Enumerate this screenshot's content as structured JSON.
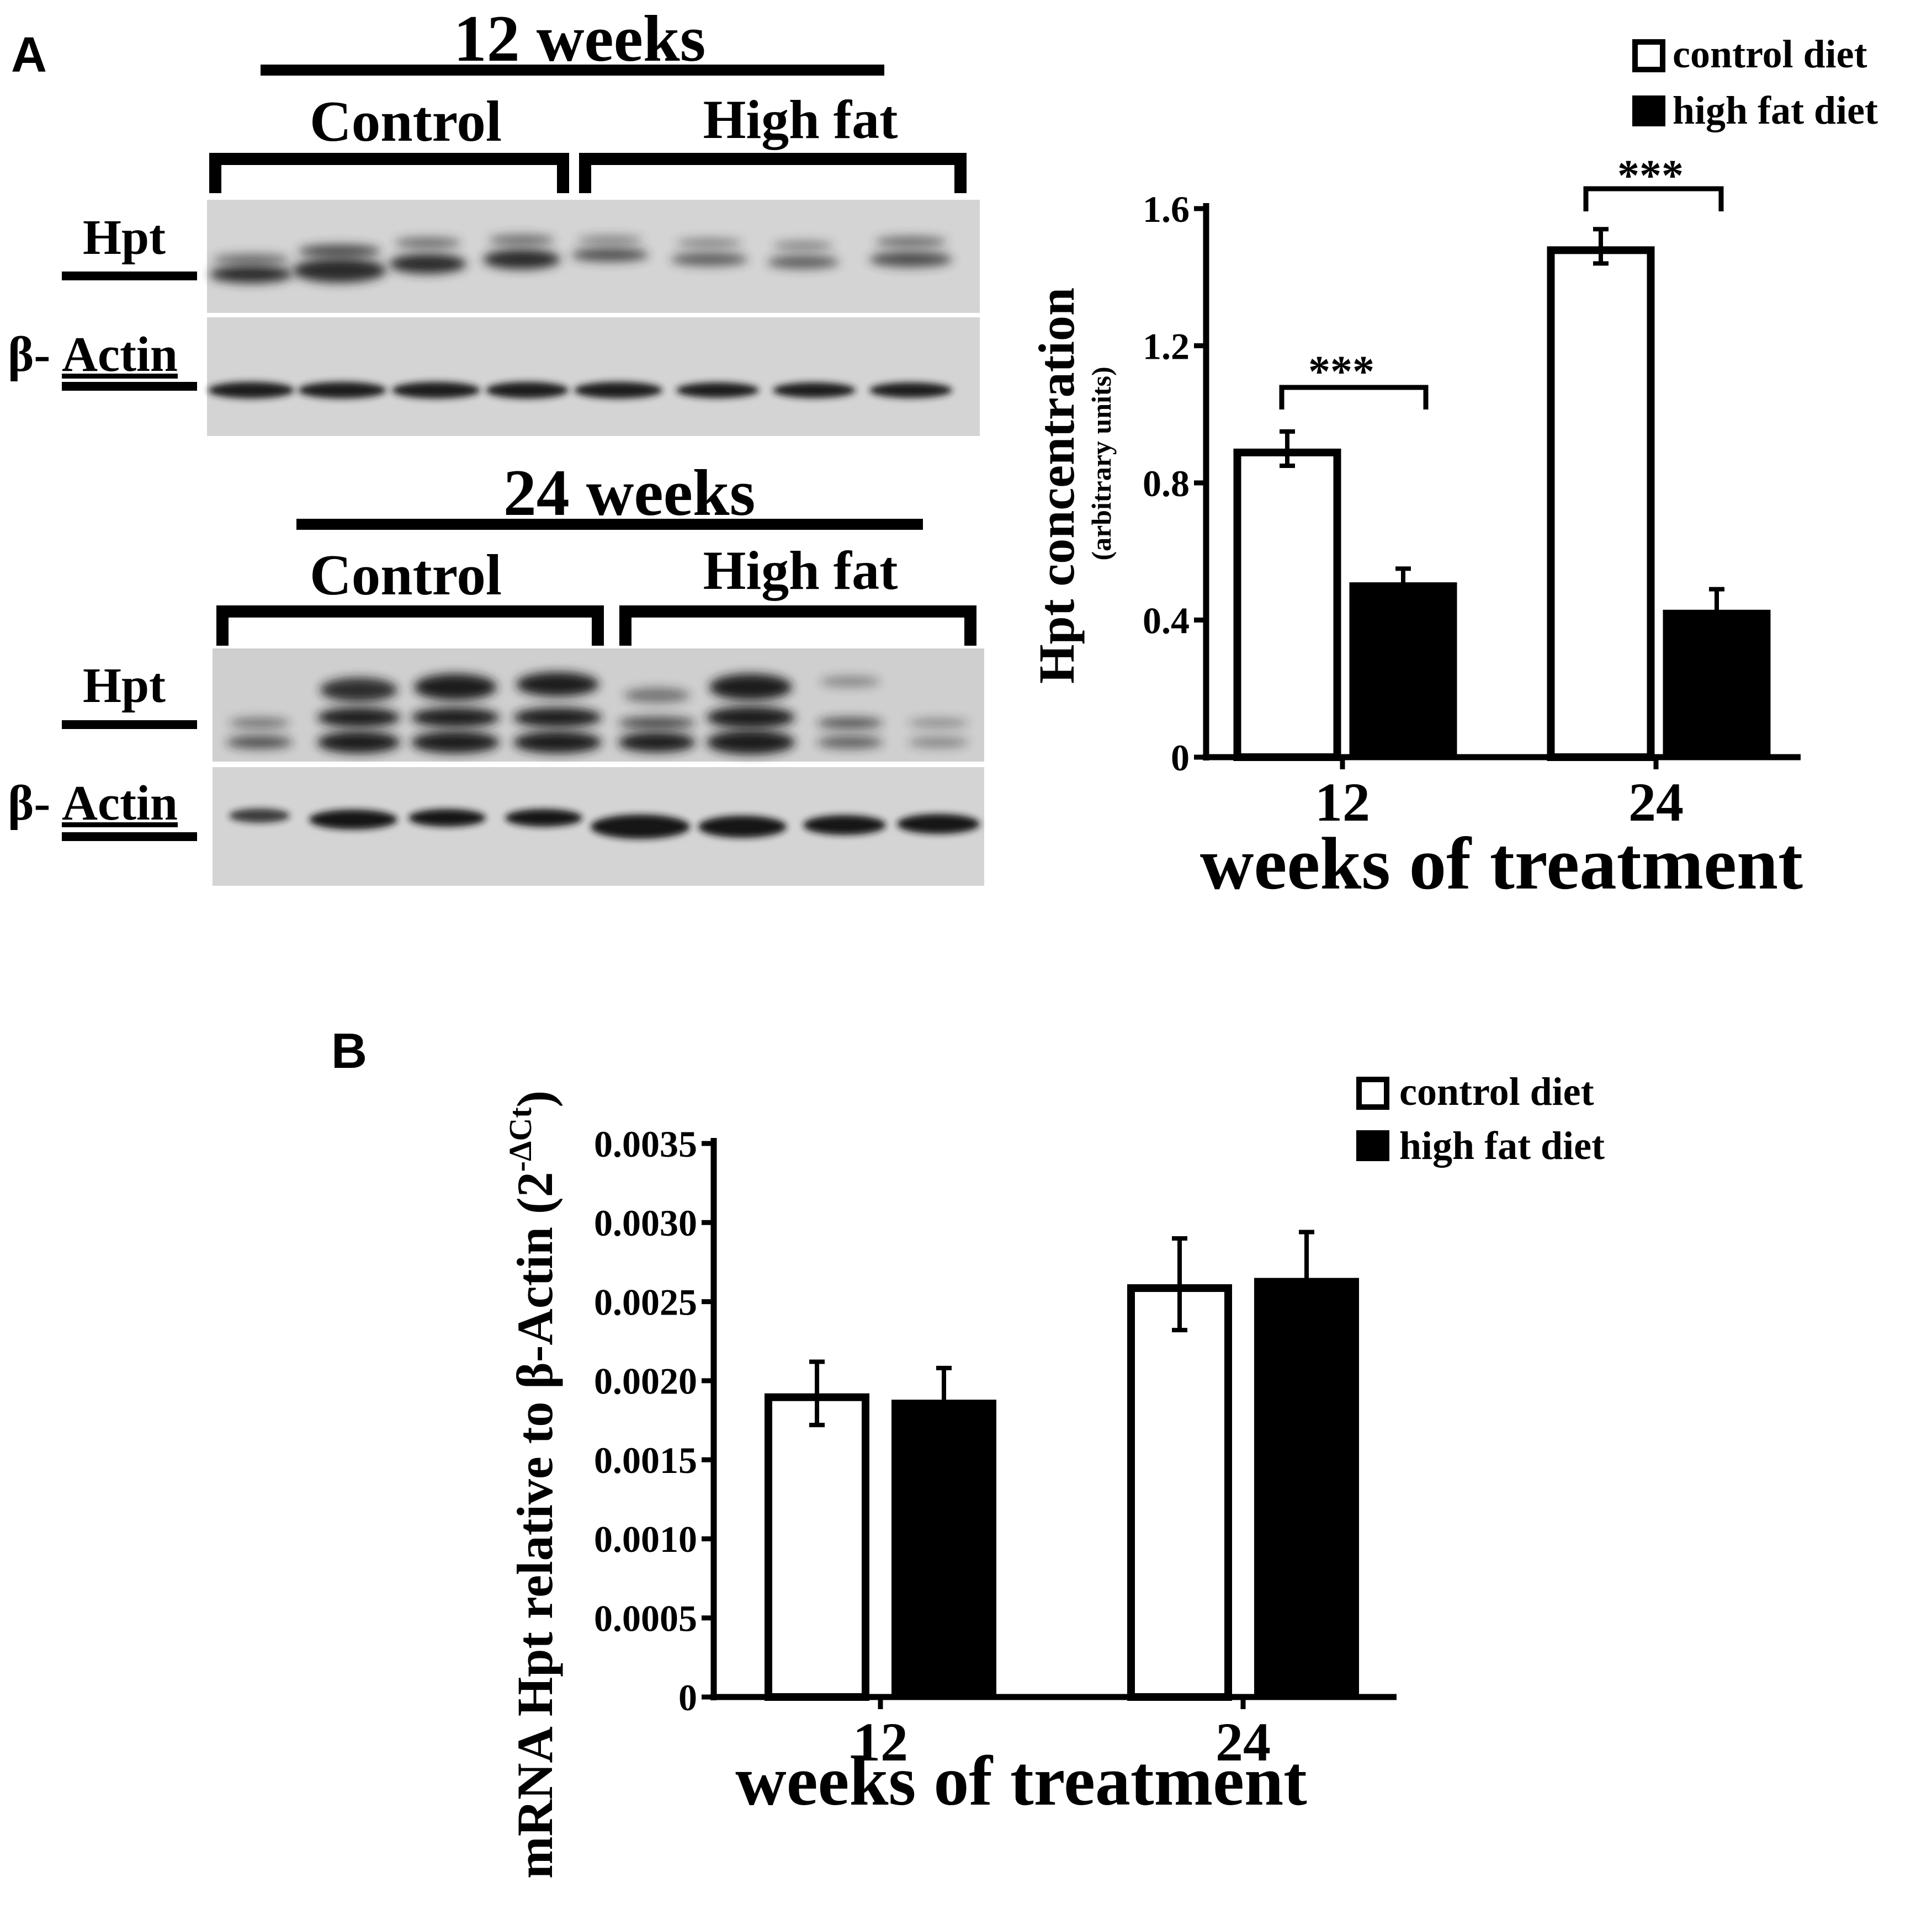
{
  "panels": {
    "a_label": "A",
    "b_label": "B"
  },
  "blots": [
    {
      "title": "12 weeks",
      "groups": [
        "Control",
        "High fat"
      ],
      "rows": [
        "Hpt",
        "β-",
        "Actin"
      ]
    },
    {
      "title": "24 weeks",
      "groups": [
        "Control",
        "High fat"
      ],
      "rows": [
        "Hpt",
        "β-",
        "Actin"
      ]
    }
  ],
  "colors": {
    "control": "#ffffff",
    "high_fat": "#000000",
    "stroke": "#000000"
  },
  "chart_data": [
    {
      "type": "bar",
      "categories": [
        "12",
        "24"
      ],
      "series": [
        {
          "name": "control diet",
          "values": [
            0.9,
            1.49
          ],
          "errors": [
            0.05,
            0.05
          ]
        },
        {
          "name": "high fat diet",
          "values": [
            0.51,
            0.43
          ],
          "errors": [
            0.04,
            0.06
          ]
        }
      ],
      "xlabel": "weeks of treatment",
      "ylabel": "Hpt concentration",
      "ylabel_sub": "(arbitrary units)",
      "ylim": [
        0,
        1.6
      ],
      "yticks": [
        "0",
        "0.4",
        "0.8",
        "1.2",
        "1.6"
      ],
      "annotations": [
        "***",
        "***"
      ],
      "legend": "top-right"
    },
    {
      "type": "bar",
      "categories": [
        "12",
        "24"
      ],
      "series": [
        {
          "name": "control diet",
          "values": [
            0.00192,
            0.00261
          ],
          "errors": [
            0.0002,
            0.00029
          ]
        },
        {
          "name": "high fat diet",
          "values": [
            0.00188,
            0.00265
          ],
          "errors": [
            0.0002,
            0.00029
          ]
        }
      ],
      "xlabel": "weeks of treatment",
      "ylabel": "mRNA Hpt relative to β-Actin (2",
      "ylabel_sup": "-ΔCt",
      "ylabel_end": ")",
      "ylim": [
        0,
        0.0035
      ],
      "yticks": [
        "0",
        "0.0005",
        "0.0010",
        "0.0015",
        "0.0020",
        "0.0025",
        "0.0030",
        "0.0035"
      ],
      "legend": "top-right"
    }
  ]
}
